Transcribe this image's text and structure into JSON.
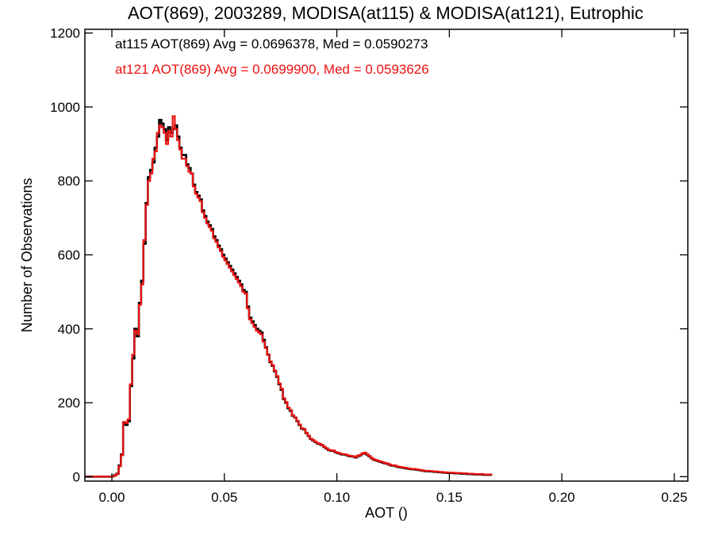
{
  "chart_data": {
    "type": "histogram-step",
    "title": "AOT(869), 2003289, MODISA(at115) & MODISA(at121), Eutrophic",
    "xlabel": "AOT ()",
    "ylabel": "Number of Observations",
    "xlim": [
      -0.012,
      0.256
    ],
    "ylim": [
      -12,
      1210
    ],
    "xticks": [
      0.0,
      0.05,
      0.1,
      0.15,
      0.2,
      0.25
    ],
    "xtick_labels": [
      "0.00",
      "0.05",
      "0.10",
      "0.15",
      "0.20",
      "0.25"
    ],
    "yticks": [
      0,
      200,
      400,
      600,
      800,
      1000,
      1200
    ],
    "ytick_labels": [
      "0",
      "200",
      "400",
      "600",
      "800",
      "1000",
      "1200"
    ],
    "annotations": [
      {
        "text": "at115 AOT(869) Avg = 0.0696378, Med = 0.0590273",
        "color": "#000000"
      },
      {
        "text": "at121 AOT(869) Avg = 0.0699900, Med = 0.0593626",
        "color": "#ee1111"
      }
    ],
    "bin_start": -0.012,
    "bin_width": 0.001,
    "series": [
      {
        "color": "#000000",
        "values": [
          0,
          0,
          0,
          0,
          0,
          0,
          0,
          0,
          0,
          0,
          0,
          0,
          1,
          4,
          8,
          30,
          60,
          145,
          140,
          150,
          245,
          320,
          400,
          380,
          470,
          530,
          630,
          740,
          810,
          830,
          850,
          890,
          920,
          965,
          955,
          940,
          910,
          945,
          930,
          940,
          950,
          920,
          890,
          870,
          870,
          845,
          835,
          820,
          790,
          770,
          760,
          750,
          720,
          705,
          690,
          680,
          670,
          650,
          640,
          625,
          615,
          600,
          590,
          580,
          570,
          560,
          550,
          540,
          530,
          520,
          505,
          500,
          460,
          430,
          420,
          410,
          400,
          395,
          390,
          370,
          350,
          330,
          310,
          300,
          285,
          270,
          250,
          235,
          210,
          200,
          185,
          178,
          165,
          160,
          150,
          140,
          130,
          128,
          118,
          110,
          102,
          98,
          94,
          90,
          88,
          85,
          80,
          76,
          72,
          70,
          70,
          66,
          64,
          62,
          60,
          60,
          58,
          56,
          55,
          54,
          52,
          56,
          58,
          62,
          64,
          60,
          55,
          50,
          46,
          44,
          42,
          40,
          38,
          36,
          35,
          32,
          30,
          30,
          28,
          26,
          25,
          24,
          23,
          22,
          21,
          20,
          20,
          19,
          18,
          17,
          16,
          15,
          15,
          14,
          14,
          13,
          13,
          12,
          12,
          11,
          11,
          10,
          10,
          10,
          9,
          9,
          9,
          8,
          8,
          8,
          7,
          7,
          7,
          6,
          6,
          6,
          6,
          5,
          5,
          5,
          5
        ]
      },
      {
        "color": "#ee1111",
        "values": [
          0,
          0,
          0,
          0,
          0,
          0,
          0,
          0,
          0,
          0,
          0,
          0,
          1,
          3,
          7,
          28,
          58,
          148,
          145,
          155,
          250,
          330,
          395,
          385,
          465,
          520,
          640,
          735,
          800,
          820,
          860,
          880,
          930,
          950,
          945,
          930,
          900,
          935,
          920,
          975,
          940,
          910,
          885,
          860,
          860,
          840,
          825,
          820,
          785,
          765,
          755,
          745,
          715,
          700,
          685,
          675,
          665,
          645,
          635,
          620,
          610,
          595,
          585,
          575,
          565,
          555,
          545,
          535,
          525,
          515,
          500,
          495,
          455,
          425,
          415,
          405,
          395,
          390,
          385,
          365,
          348,
          330,
          312,
          302,
          287,
          272,
          252,
          238,
          212,
          202,
          187,
          180,
          166,
          160,
          151,
          141,
          131,
          129,
          119,
          111,
          103,
          99,
          95,
          91,
          89,
          86,
          81,
          77,
          73,
          71,
          71,
          67,
          65,
          63,
          61,
          61,
          59,
          57,
          56,
          55,
          53,
          57,
          59,
          63,
          65,
          61,
          56,
          51,
          47,
          45,
          43,
          41,
          39,
          37,
          36,
          33,
          31,
          31,
          29,
          27,
          26,
          25,
          24,
          23,
          22,
          21,
          21,
          20,
          19,
          18,
          17,
          16,
          16,
          15,
          15,
          14,
          14,
          13,
          13,
          12,
          12,
          11,
          11,
          11,
          10,
          10,
          10,
          9,
          9,
          9,
          8,
          8,
          8,
          7,
          7,
          7,
          7,
          6,
          6,
          6,
          6
        ]
      }
    ]
  }
}
